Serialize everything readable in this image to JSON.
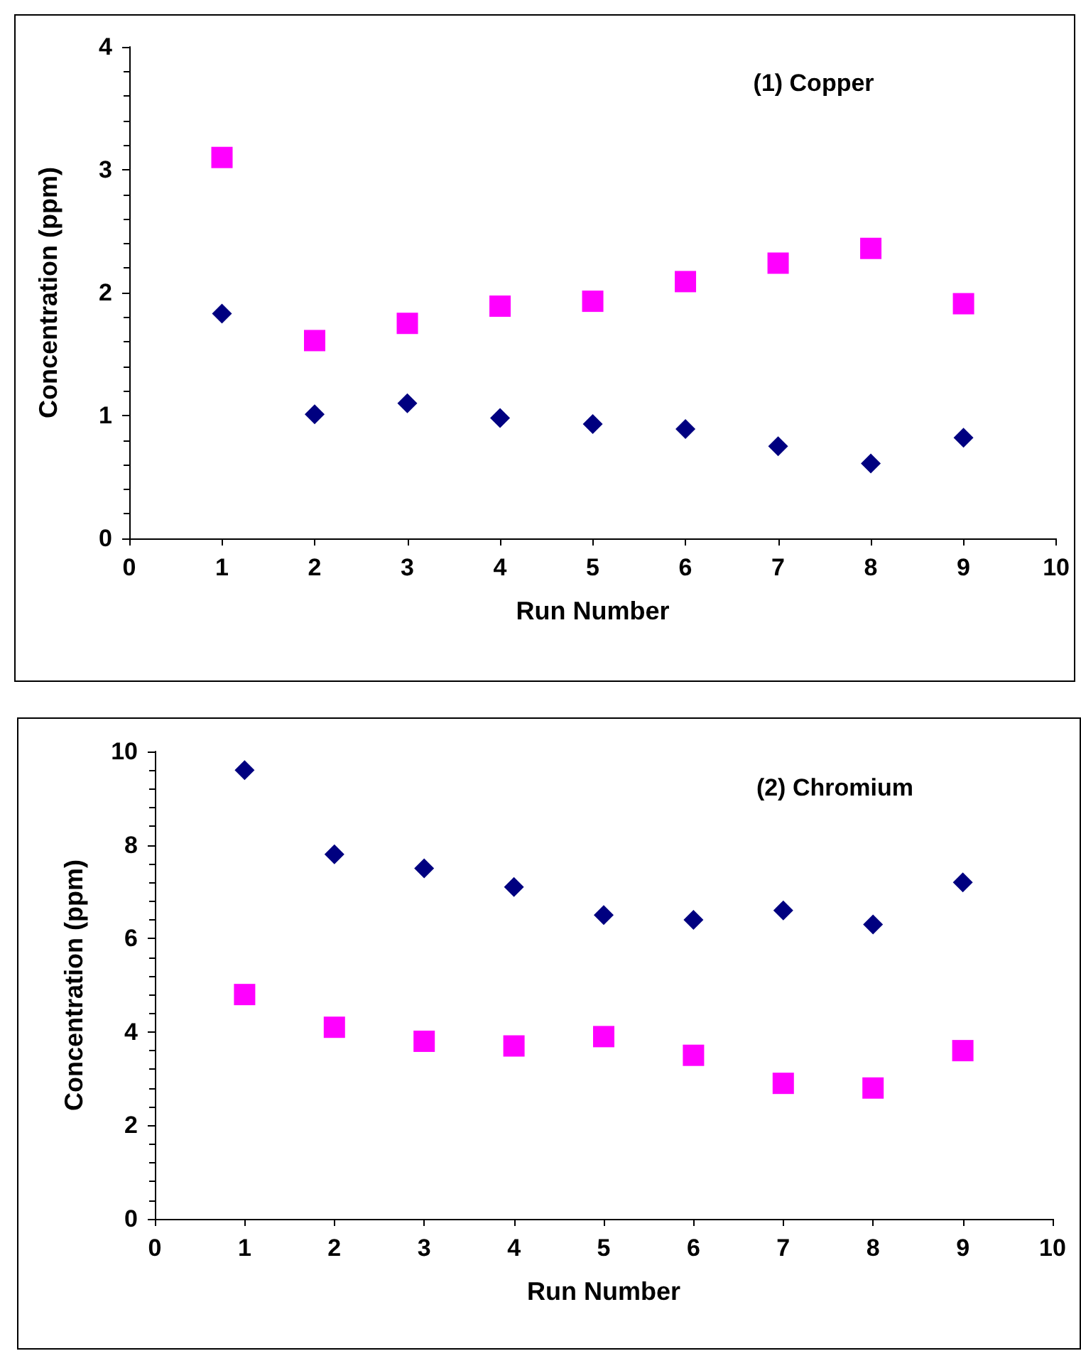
{
  "chart_data": [
    {
      "type": "scatter",
      "title": "(1) Copper",
      "xlabel": "Run Number",
      "ylabel": "Concentration (ppm)",
      "xlim": [
        0,
        10
      ],
      "xticks": [
        0,
        1,
        2,
        3,
        4,
        5,
        6,
        7,
        8,
        9,
        10
      ],
      "ylim": [
        0,
        4
      ],
      "yticks": [
        0,
        1,
        2,
        3,
        4
      ],
      "grid": false,
      "x": [
        1,
        2,
        3,
        4,
        5,
        6,
        7,
        8,
        9
      ],
      "series": [
        {
          "color": "#000080",
          "marker": "diamond",
          "values": [
            1.83,
            1.01,
            1.1,
            0.98,
            0.93,
            0.89,
            0.75,
            0.61,
            0.82
          ]
        },
        {
          "color": "#ff00ff",
          "marker": "square",
          "values": [
            3.1,
            1.61,
            1.75,
            1.89,
            1.93,
            2.09,
            2.24,
            2.36,
            1.91
          ]
        }
      ]
    },
    {
      "type": "scatter",
      "title": "(2) Chromium",
      "xlabel": "Run Number",
      "ylabel": "Concentration (ppm)",
      "xlim": [
        0,
        10
      ],
      "xticks": [
        0,
        1,
        2,
        3,
        4,
        5,
        6,
        7,
        8,
        9,
        10
      ],
      "ylim": [
        0,
        10
      ],
      "yticks": [
        0,
        2,
        4,
        6,
        8,
        10
      ],
      "grid": false,
      "x": [
        1,
        2,
        3,
        4,
        5,
        6,
        7,
        8,
        9
      ],
      "series": [
        {
          "color": "#000080",
          "marker": "diamond",
          "values": [
            9.6,
            7.8,
            7.5,
            7.1,
            6.5,
            6.4,
            6.6,
            6.3,
            7.2
          ]
        },
        {
          "color": "#ff00ff",
          "marker": "square",
          "values": [
            4.8,
            4.1,
            3.8,
            3.7,
            3.9,
            3.5,
            2.9,
            2.8,
            3.6
          ]
        }
      ]
    }
  ]
}
